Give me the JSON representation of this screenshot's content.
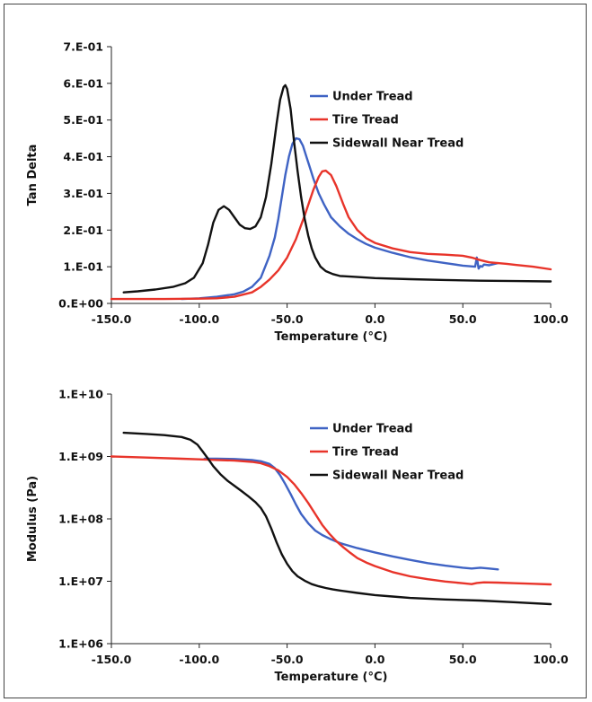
{
  "chart_data": [
    {
      "type": "line",
      "xlabel": "Temperature (°C)",
      "ylabel": "Tan Delta",
      "xlim": [
        -150,
        100
      ],
      "ylim": [
        0,
        0.7
      ],
      "yscale": "linear",
      "xticks": [
        "-150.0",
        "-100.0",
        "-50.0",
        "0.0",
        "50.0",
        "100.0"
      ],
      "yticks": [
        "0.E+00",
        "1.E-01",
        "2.E-01",
        "3.E-01",
        "4.E-01",
        "5.E-01",
        "6.E-01",
        "7.E-01"
      ],
      "legend_position": "top-right",
      "series": [
        {
          "name": "Under Tread",
          "color": "#3f63c4",
          "x": [
            -110,
            -100,
            -90,
            -80,
            -75,
            -70,
            -65,
            -60,
            -57,
            -55,
            -53,
            -51,
            -49,
            -47,
            -45,
            -43,
            -41,
            -39,
            -37,
            -35,
            -32,
            -29,
            -25,
            -20,
            -15,
            -10,
            -5,
            0,
            10,
            20,
            30,
            40,
            50,
            57,
            58,
            59,
            60,
            61,
            62,
            65,
            70
          ],
          "y": [
            0.012,
            0.014,
            0.018,
            0.025,
            0.032,
            0.045,
            0.07,
            0.13,
            0.18,
            0.23,
            0.29,
            0.35,
            0.4,
            0.435,
            0.45,
            0.448,
            0.43,
            0.4,
            0.37,
            0.34,
            0.3,
            0.27,
            0.235,
            0.21,
            0.19,
            0.175,
            0.162,
            0.152,
            0.138,
            0.126,
            0.117,
            0.11,
            0.103,
            0.1,
            0.125,
            0.095,
            0.102,
            0.1,
            0.106,
            0.104,
            0.11
          ]
        },
        {
          "name": "Tire Tread",
          "color": "#e8342a",
          "x": [
            -150,
            -120,
            -100,
            -90,
            -80,
            -70,
            -65,
            -60,
            -55,
            -50,
            -45,
            -40,
            -35,
            -32,
            -30,
            -28,
            -25,
            -22,
            -18,
            -15,
            -10,
            -5,
            0,
            10,
            20,
            30,
            40,
            50,
            55,
            60,
            65,
            70,
            75,
            80,
            90,
            100
          ],
          "y": [
            0.012,
            0.012,
            0.013,
            0.014,
            0.018,
            0.03,
            0.045,
            0.065,
            0.09,
            0.125,
            0.175,
            0.24,
            0.31,
            0.345,
            0.36,
            0.362,
            0.35,
            0.32,
            0.27,
            0.235,
            0.2,
            0.178,
            0.165,
            0.15,
            0.14,
            0.135,
            0.133,
            0.13,
            0.125,
            0.118,
            0.112,
            0.11,
            0.108,
            0.105,
            0.1,
            0.093
          ]
        },
        {
          "name": "Sidewall Near Tread",
          "color": "#111111",
          "x": [
            -143,
            -135,
            -125,
            -115,
            -108,
            -103,
            -98,
            -95,
            -92,
            -89,
            -86,
            -83,
            -80,
            -77,
            -74,
            -71,
            -68,
            -65,
            -62,
            -59,
            -56,
            -54,
            -52,
            -51,
            -50,
            -48,
            -46,
            -44,
            -42,
            -40,
            -38,
            -36,
            -34,
            -31,
            -28,
            -24,
            -20,
            -10,
            0,
            20,
            40,
            60,
            80,
            100
          ],
          "y": [
            0.03,
            0.033,
            0.038,
            0.045,
            0.055,
            0.07,
            0.11,
            0.16,
            0.22,
            0.255,
            0.265,
            0.255,
            0.235,
            0.215,
            0.205,
            0.203,
            0.21,
            0.235,
            0.29,
            0.38,
            0.49,
            0.555,
            0.59,
            0.595,
            0.585,
            0.53,
            0.44,
            0.36,
            0.29,
            0.23,
            0.185,
            0.15,
            0.125,
            0.1,
            0.088,
            0.08,
            0.075,
            0.072,
            0.069,
            0.066,
            0.064,
            0.062,
            0.061,
            0.06
          ]
        }
      ]
    },
    {
      "type": "line",
      "xlabel": "Temperature (°C)",
      "ylabel": "Modulus (Pa)",
      "xlim": [
        -150,
        100
      ],
      "ylim": [
        1000000,
        10000000000
      ],
      "yscale": "log",
      "xticks": [
        "-150.0",
        "-100.0",
        "-50.0",
        "0.0",
        "50.0",
        "100.0"
      ],
      "yticks": [
        "1.E+06",
        "1.E+07",
        "1.E+08",
        "1.E+09",
        "1.E+10"
      ],
      "legend_position": "top-right",
      "series": [
        {
          "name": "Under Tread",
          "color": "#3f63c4",
          "x": [
            -97,
            -90,
            -80,
            -70,
            -65,
            -60,
            -57,
            -54,
            -51,
            -48,
            -45,
            -42,
            -38,
            -34,
            -30,
            -25,
            -20,
            -10,
            0,
            10,
            20,
            30,
            40,
            50,
            55,
            60,
            65,
            70
          ],
          "y": [
            920000000,
            920000000,
            910000000,
            880000000,
            840000000,
            760000000,
            650000000,
            500000000,
            360000000,
            250000000,
            170000000,
            120000000,
            85000000,
            65000000,
            55000000,
            47000000,
            41000000,
            34000000,
            29000000,
            25000000,
            22000000,
            19500000,
            17800000,
            16500000,
            16000000,
            16500000,
            16000000,
            15500000
          ]
        },
        {
          "name": "Tire Tread",
          "color": "#e8342a",
          "x": [
            -150,
            -130,
            -110,
            -100,
            -90,
            -80,
            -70,
            -65,
            -60,
            -55,
            -50,
            -46,
            -42,
            -38,
            -34,
            -30,
            -26,
            -22,
            -18,
            -14,
            -10,
            -5,
            0,
            10,
            20,
            30,
            40,
            50,
            55,
            58,
            62,
            70,
            80,
            90,
            100
          ],
          "y": [
            1000000000,
            960000000,
            920000000,
            900000000,
            880000000,
            860000000,
            820000000,
            780000000,
            700000000,
            600000000,
            470000000,
            360000000,
            260000000,
            180000000,
            120000000,
            80000000,
            58000000,
            44000000,
            35000000,
            28500000,
            23500000,
            20000000,
            17500000,
            14000000,
            12000000,
            10800000,
            9900000,
            9300000,
            9000000,
            9400000,
            9600000,
            9500000,
            9300000,
            9100000,
            8900000
          ]
        },
        {
          "name": "Sidewall Near Tread",
          "color": "#111111",
          "x": [
            -143,
            -130,
            -120,
            -110,
            -105,
            -101,
            -98,
            -95,
            -92,
            -88,
            -84,
            -80,
            -76,
            -72,
            -68,
            -65,
            -62,
            -59,
            -56,
            -53,
            -50,
            -47,
            -44,
            -40,
            -36,
            -32,
            -28,
            -24,
            -20,
            -10,
            0,
            10,
            20,
            40,
            60,
            80,
            100
          ],
          "y": [
            2400000000,
            2300000000,
            2200000000,
            2050000000,
            1850000000,
            1550000000,
            1200000000,
            920000000,
            700000000,
            520000000,
            410000000,
            340000000,
            280000000,
            230000000,
            185000000,
            150000000,
            110000000,
            70000000,
            42000000,
            27000000,
            19000000,
            14500000,
            12000000,
            10200000,
            9000000,
            8300000,
            7800000,
            7400000,
            7100000,
            6500000,
            6000000,
            5700000,
            5400000,
            5100000,
            4900000,
            4600000,
            4300000
          ]
        }
      ]
    }
  ]
}
